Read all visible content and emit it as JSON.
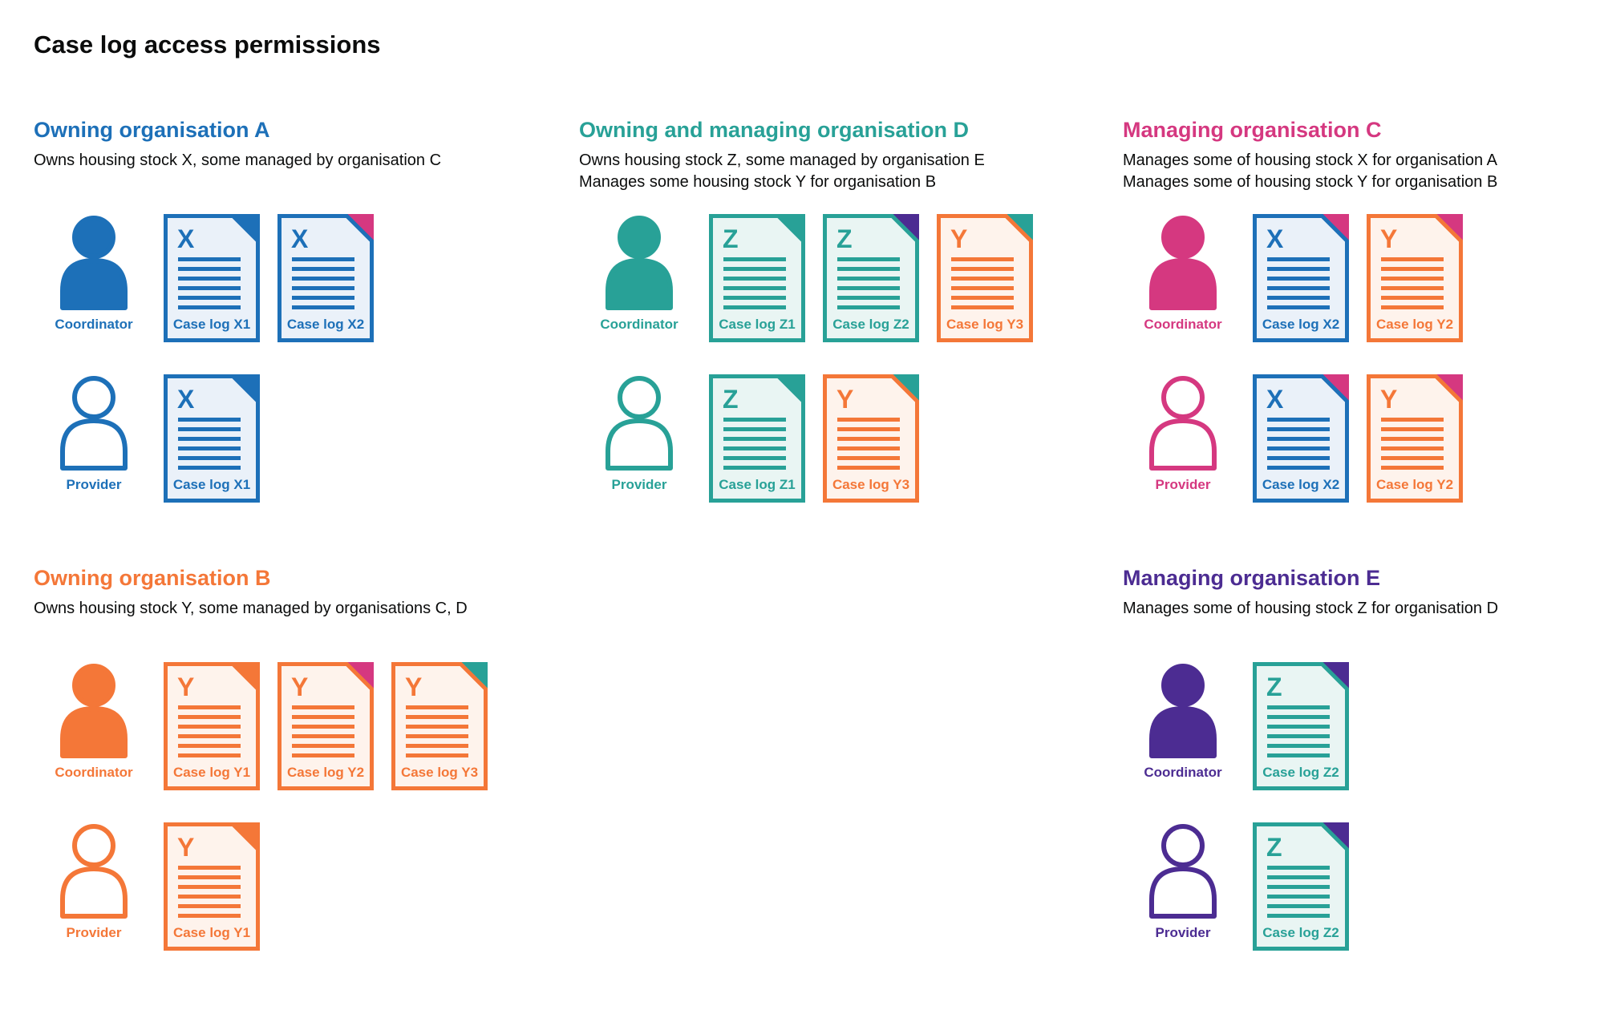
{
  "title": "Case log access permissions",
  "colors": {
    "blue": {
      "main": "#1d70b8",
      "tint": "#eaf1f9"
    },
    "teal": {
      "main": "#28a197",
      "tint": "#e9f5f3"
    },
    "orange": {
      "main": "#f47738",
      "tint": "#fef3ec"
    },
    "pink": {
      "main": "#d53880",
      "tint": "#fbebf2"
    },
    "purple": {
      "main": "#4c2c92",
      "tint": "#ece9f4"
    },
    "text": "#0b0c0c",
    "background": "#ffffff"
  },
  "sections": [
    {
      "id": "org-a",
      "heading": "Owning organisation A",
      "color": "blue",
      "description": [
        "Owns housing stock X, some managed by organisation C"
      ],
      "rows": [
        {
          "role": "Coordinator",
          "docs": [
            {
              "letter": "X",
              "label": "Case log X1",
              "color": "blue",
              "fold": "blue"
            },
            {
              "letter": "X",
              "label": "Case log X2",
              "color": "blue",
              "fold": "pink"
            }
          ]
        },
        {
          "role": "Provider",
          "docs": [
            {
              "letter": "X",
              "label": "Case log X1",
              "color": "blue",
              "fold": "blue"
            }
          ]
        }
      ]
    },
    {
      "id": "org-d",
      "heading": "Owning and managing organisation D",
      "color": "teal",
      "description": [
        "Owns housing stock Z, some managed by organisation E",
        "Manages some housing stock Y for organisation B"
      ],
      "rows": [
        {
          "role": "Coordinator",
          "docs": [
            {
              "letter": "Z",
              "label": "Case log Z1",
              "color": "teal",
              "fold": "teal"
            },
            {
              "letter": "Z",
              "label": "Case log Z2",
              "color": "teal",
              "fold": "purple"
            },
            {
              "letter": "Y",
              "label": "Case log Y3",
              "color": "orange",
              "fold": "teal"
            }
          ]
        },
        {
          "role": "Provider",
          "docs": [
            {
              "letter": "Z",
              "label": "Case log Z1",
              "color": "teal",
              "fold": "teal"
            },
            {
              "letter": "Y",
              "label": "Case log Y3",
              "color": "orange",
              "fold": "teal"
            }
          ]
        }
      ]
    },
    {
      "id": "org-c",
      "heading": "Managing organisation C",
      "color": "pink",
      "description": [
        "Manages some of housing stock X for organisation A",
        "Manages some of housing stock Y for organisation B"
      ],
      "rows": [
        {
          "role": "Coordinator",
          "docs": [
            {
              "letter": "X",
              "label": "Case log X2",
              "color": "blue",
              "fold": "pink"
            },
            {
              "letter": "Y",
              "label": "Case log Y2",
              "color": "orange",
              "fold": "pink"
            }
          ]
        },
        {
          "role": "Provider",
          "docs": [
            {
              "letter": "X",
              "label": "Case log X2",
              "color": "blue",
              "fold": "pink"
            },
            {
              "letter": "Y",
              "label": "Case log Y2",
              "color": "orange",
              "fold": "pink"
            }
          ]
        }
      ]
    },
    {
      "id": "org-b",
      "heading": "Owning organisation B",
      "color": "orange",
      "description": [
        "Owns housing stock Y, some managed by organisations C, D"
      ],
      "rows": [
        {
          "role": "Coordinator",
          "docs": [
            {
              "letter": "Y",
              "label": "Case log Y1",
              "color": "orange",
              "fold": "orange"
            },
            {
              "letter": "Y",
              "label": "Case log Y2",
              "color": "orange",
              "fold": "pink"
            },
            {
              "letter": "Y",
              "label": "Case log Y3",
              "color": "orange",
              "fold": "teal"
            }
          ]
        },
        {
          "role": "Provider",
          "docs": [
            {
              "letter": "Y",
              "label": "Case log Y1",
              "color": "orange",
              "fold": "orange"
            }
          ]
        }
      ]
    },
    {
      "id": "org-e",
      "heading": "Managing organisation E",
      "color": "purple",
      "description": [
        "Manages some of housing stock Z for organisation D"
      ],
      "rows": [
        {
          "role": "Coordinator",
          "docs": [
            {
              "letter": "Z",
              "label": "Case log Z2",
              "color": "teal",
              "fold": "purple"
            }
          ]
        },
        {
          "role": "Provider",
          "docs": [
            {
              "letter": "Z",
              "label": "Case log Z2",
              "color": "teal",
              "fold": "purple"
            }
          ]
        }
      ]
    }
  ]
}
